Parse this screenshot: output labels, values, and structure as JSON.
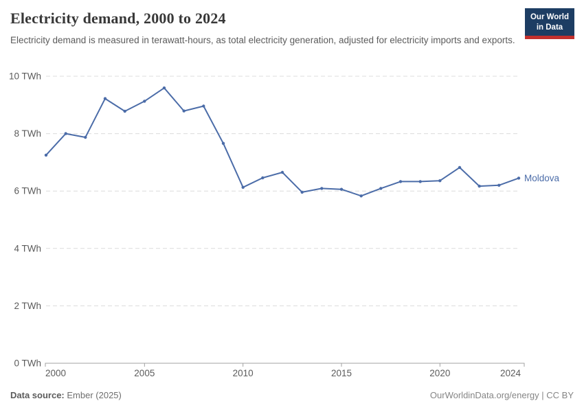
{
  "header": {
    "title": "Electricity demand, 2000 to 2024",
    "subtitle": "Electricity demand is measured in terawatt-hours, as total electricity generation, adjusted for electricity imports and exports."
  },
  "logo": {
    "line1": "Our World",
    "line2": "in Data",
    "bg_color": "#1d3d63",
    "accent_color": "#c2302d"
  },
  "footer": {
    "datasource_label": "Data source:",
    "datasource_value": "Ember (2025)",
    "link": "OurWorldinData.org/energy",
    "separator": " | ",
    "license": "CC BY"
  },
  "chart_data": {
    "type": "line",
    "title": "Electricity demand, 2000 to 2024",
    "xlabel": "",
    "ylabel": "",
    "unit": "TWh",
    "xlim": [
      2000,
      2024
    ],
    "ylim": [
      0,
      10
    ],
    "grid": "dashed-horizontal",
    "legend_position": "end-of-line-label",
    "x": [
      2000,
      2001,
      2002,
      2003,
      2004,
      2005,
      2006,
      2007,
      2008,
      2009,
      2010,
      2011,
      2012,
      2013,
      2014,
      2015,
      2016,
      2017,
      2018,
      2019,
      2020,
      2021,
      2022,
      2023,
      2024
    ],
    "series": [
      {
        "name": "Moldova",
        "color": "#4b6ca8",
        "values": [
          7.25,
          8.0,
          7.87,
          9.22,
          8.78,
          9.13,
          9.59,
          8.79,
          8.96,
          7.66,
          6.13,
          6.46,
          6.65,
          5.96,
          6.09,
          6.06,
          5.83,
          6.09,
          6.33,
          6.33,
          6.36,
          6.82,
          6.17,
          6.2,
          6.45
        ]
      }
    ],
    "yticks": [
      0,
      2,
      4,
      6,
      8,
      10
    ],
    "ytick_labels": [
      "0 TWh",
      "2 TWh",
      "4 TWh",
      "6 TWh",
      "8 TWh",
      "10 TWh"
    ],
    "xticks": [
      2000,
      2005,
      2010,
      2015,
      2020,
      2024
    ],
    "xtick_labels": [
      "2000",
      "2005",
      "2010",
      "2015",
      "2020",
      "2024"
    ],
    "colors": {
      "gridline": "#dcdcdc",
      "axis": "#a1a1a1",
      "tick_text": "#5b5b5b"
    }
  }
}
